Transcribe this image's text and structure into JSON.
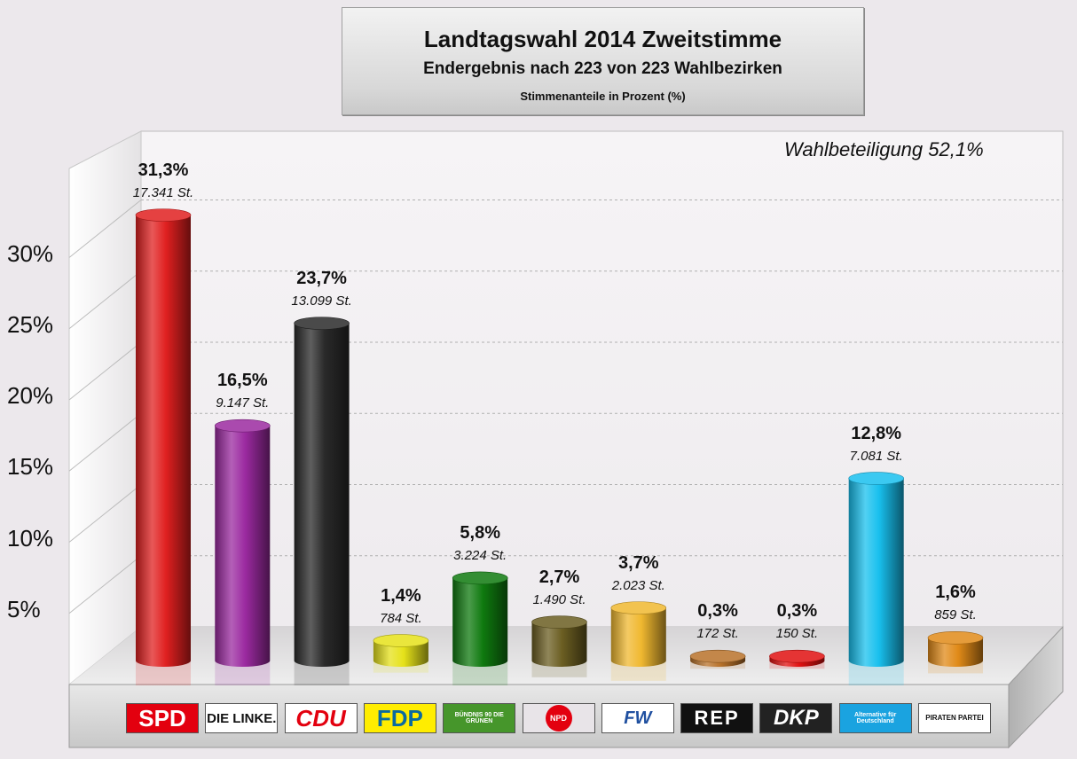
{
  "title": "Landtagswahl 2014 Zweitstimme",
  "subtitle": "Endergebnis nach 223 von 223 Wahlbezirken",
  "note": "Stimmenanteile in Prozent (%)",
  "turnout": "Wahlbeteiligung 52,1%",
  "y_tick_labels": [
    "30%",
    "25%",
    "20%",
    "15%",
    "10%",
    "5%"
  ],
  "parties": [
    {
      "name": "SPD",
      "pct_label": "31,3%",
      "votes_label": "17.341 St.",
      "color": "#e02020"
    },
    {
      "name": "DIE LINKE.",
      "pct_label": "16,5%",
      "votes_label": "9.147 St.",
      "color": "#9b2aa0"
    },
    {
      "name": "CDU",
      "pct_label": "23,7%",
      "votes_label": "13.099 St.",
      "color": "#2a2a2a"
    },
    {
      "name": "FDP",
      "pct_label": "1,4%",
      "votes_label": "784 St.",
      "color": "#e6e21a"
    },
    {
      "name": "BÜNDNIS 90 DIE GRÜNEN",
      "pct_label": "5,8%",
      "votes_label": "3.224 St.",
      "color": "#0f7a0f"
    },
    {
      "name": "NPD",
      "pct_label": "2,7%",
      "votes_label": "1.490 St.",
      "color": "#6b5e22"
    },
    {
      "name": "FW",
      "pct_label": "3,7%",
      "votes_label": "2.023 St.",
      "color": "#f0b830"
    },
    {
      "name": "REP",
      "pct_label": "0,3%",
      "votes_label": "172 St.",
      "color": "#b8722a"
    },
    {
      "name": "DKP",
      "pct_label": "0,3%",
      "votes_label": "150 St.",
      "color": "#e01010"
    },
    {
      "name": "Alternative für Deutschland",
      "pct_label": "12,8%",
      "votes_label": "7.081 St.",
      "color": "#18c0ee"
    },
    {
      "name": "PIRATEN PARTEI",
      "pct_label": "1,6%",
      "votes_label": "859 St.",
      "color": "#e08a18"
    }
  ],
  "logos": [
    {
      "text": "SPD",
      "bg": "#e3000f",
      "fg": "#ffffff"
    },
    {
      "text": "DIE LINKE.",
      "bg": "#ffffff",
      "fg": "#111111"
    },
    {
      "text": "CDU",
      "bg": "#ffffff",
      "fg": "#e3000f"
    },
    {
      "text": "FDP",
      "bg": "#ffed00",
      "fg": "#0a6aa0"
    },
    {
      "text": "BÜNDNIS 90 DIE GRÜNEN",
      "bg": "#46962b",
      "fg": "#ffffff"
    },
    {
      "text": "NPD",
      "bg": "#e8e4e8",
      "fg": "#ffffff"
    },
    {
      "text": "FW",
      "bg": "#ffffff",
      "fg": "#2050a0"
    },
    {
      "text": "REP",
      "bg": "#111111",
      "fg": "#ffffff"
    },
    {
      "text": "DKP",
      "bg": "#222222",
      "fg": "#ffffff"
    },
    {
      "text": "Alternative für Deutschland",
      "bg": "#1aa3e0",
      "fg": "#ffffff"
    },
    {
      "text": "PIRATEN PARTEI",
      "bg": "#ffffff",
      "fg": "#111111"
    }
  ],
  "chart_data": {
    "type": "bar",
    "title": "Landtagswahl 2014 Zweitstimme",
    "subtitle": "Endergebnis nach 223 von 223 Wahlbezirken",
    "ylabel": "Stimmenanteile in Prozent (%)",
    "categories": [
      "SPD",
      "DIE LINKE.",
      "CDU",
      "FDP",
      "BÜNDNIS 90 DIE GRÜNEN",
      "NPD",
      "FW",
      "REP",
      "DKP",
      "AfD",
      "PIRATEN"
    ],
    "values": [
      31.3,
      16.5,
      23.7,
      1.4,
      5.8,
      2.7,
      3.7,
      0.3,
      0.3,
      12.8,
      1.6
    ],
    "votes": [
      17341,
      9147,
      13099,
      784,
      3224,
      1490,
      2023,
      172,
      150,
      7081,
      859
    ],
    "ylim": [
      0,
      35
    ],
    "yticks": [
      5,
      10,
      15,
      20,
      25,
      30
    ],
    "grid": true,
    "legend": "none"
  }
}
